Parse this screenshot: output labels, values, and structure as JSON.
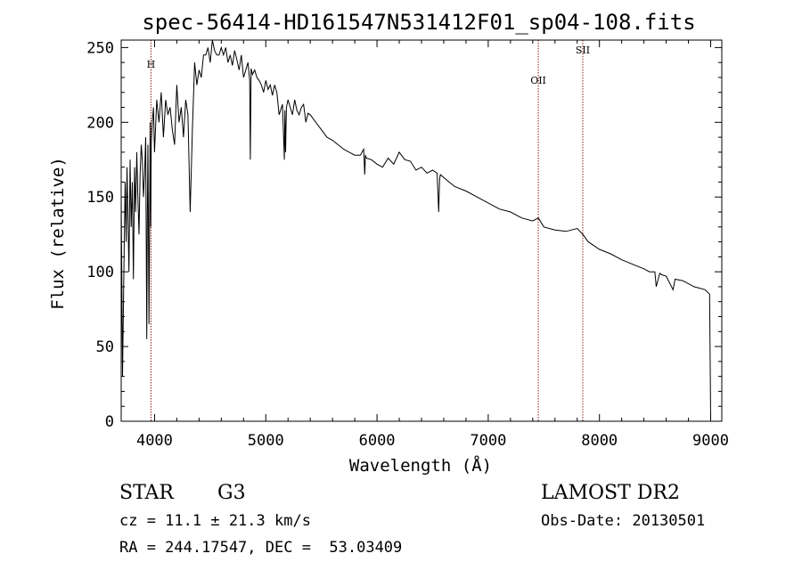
{
  "chart_data": {
    "type": "line",
    "title": "spec-56414-HD161547N531412F01_sp04-108.fits",
    "xlabel": "Wavelength (Å)",
    "ylabel": "Flux (relative)",
    "xlim": [
      3700,
      9100
    ],
    "ylim": [
      0,
      255
    ],
    "xticks": [
      4000,
      5000,
      6000,
      7000,
      8000,
      9000
    ],
    "yticks": [
      0,
      50,
      100,
      150,
      200,
      250
    ],
    "grid": false,
    "line_color": "#000000",
    "marker_color": "#8b1a1a",
    "spectrum": {
      "x": [
        3700,
        3712,
        3724,
        3735,
        3745,
        3752,
        3760,
        3770,
        3780,
        3790,
        3800,
        3810,
        3820,
        3830,
        3840,
        3850,
        3860,
        3870,
        3880,
        3890,
        3900,
        3910,
        3920,
        3930,
        3935,
        3940,
        3950,
        3960,
        3965,
        3970,
        3980,
        3990,
        4000,
        4020,
        4040,
        4060,
        4080,
        4100,
        4120,
        4140,
        4160,
        4180,
        4200,
        4220,
        4240,
        4260,
        4280,
        4300,
        4320,
        4340,
        4360,
        4380,
        4400,
        4420,
        4440,
        4460,
        4480,
        4500,
        4520,
        4540,
        4560,
        4580,
        4600,
        4620,
        4640,
        4660,
        4680,
        4700,
        4720,
        4740,
        4760,
        4780,
        4800,
        4820,
        4840,
        4855,
        4861,
        4868,
        4880,
        4900,
        4920,
        4940,
        4960,
        4980,
        5000,
        5020,
        5040,
        5060,
        5080,
        5100,
        5120,
        5150,
        5167,
        5172,
        5178,
        5185,
        5200,
        5220,
        5240,
        5260,
        5280,
        5300,
        5320,
        5340,
        5360,
        5380,
        5400,
        5450,
        5500,
        5550,
        5600,
        5650,
        5700,
        5750,
        5800,
        5850,
        5880,
        5890,
        5896,
        5905,
        5950,
        6000,
        6050,
        6100,
        6150,
        6200,
        6250,
        6300,
        6350,
        6400,
        6450,
        6500,
        6540,
        6555,
        6563,
        6570,
        6600,
        6650,
        6700,
        6800,
        6900,
        7000,
        7100,
        7200,
        7300,
        7400,
        7450,
        7500,
        7600,
        7700,
        7800,
        7850,
        7900,
        8000,
        8100,
        8200,
        8300,
        8400,
        8450,
        8498,
        8510,
        8542,
        8560,
        8600,
        8662,
        8680,
        8750,
        8850,
        8950,
        8990,
        9000
      ],
      "y": [
        150,
        30,
        100,
        160,
        120,
        170,
        140,
        100,
        175,
        130,
        160,
        95,
        170,
        140,
        180,
        150,
        125,
        165,
        185,
        175,
        150,
        165,
        190,
        55,
        135,
        185,
        65,
        200,
        130,
        185,
        200,
        210,
        180,
        215,
        200,
        220,
        190,
        215,
        205,
        210,
        195,
        185,
        225,
        200,
        210,
        190,
        215,
        205,
        140,
        195,
        240,
        225,
        235,
        230,
        245,
        245,
        250,
        240,
        255,
        248,
        245,
        245,
        250,
        245,
        250,
        240,
        245,
        238,
        248,
        242,
        235,
        245,
        230,
        235,
        240,
        228,
        175,
        236,
        232,
        235,
        230,
        228,
        225,
        220,
        228,
        222,
        225,
        218,
        225,
        220,
        205,
        212,
        175,
        208,
        180,
        210,
        215,
        210,
        205,
        215,
        208,
        205,
        210,
        212,
        200,
        206,
        205,
        200,
        195,
        190,
        188,
        185,
        182,
        180,
        178,
        178,
        182,
        165,
        178,
        176,
        175,
        172,
        170,
        176,
        172,
        180,
        175,
        174,
        168,
        170,
        166,
        168,
        166,
        140,
        162,
        165,
        163,
        160,
        157,
        154,
        150,
        146,
        142,
        140,
        136,
        134,
        136,
        130,
        128,
        127,
        129,
        125,
        120,
        115,
        112,
        108,
        105,
        102,
        100,
        100,
        90,
        99,
        98,
        97,
        88,
        95,
        94,
        90,
        88,
        85,
        2
      ]
    },
    "lines": [
      {
        "label": "H",
        "x": 3968
      },
      {
        "label": "OII",
        "x": 7450
      },
      {
        "label": "SII",
        "x": 7850
      }
    ]
  },
  "info": {
    "class": "STAR",
    "subclass": "G3",
    "survey": "LAMOST DR2",
    "cz": "cz = 11.1 ± 21.3 km/s",
    "obsdate": "Obs-Date: 20130501",
    "radec": "RA = 244.17547, DEC =  53.03409"
  }
}
